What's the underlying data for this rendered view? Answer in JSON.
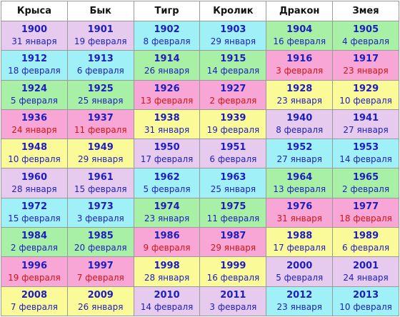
{
  "colors": {
    "pink": "#f7a6d6",
    "lavender": "#e6cbef",
    "cyan": "#9ff1f7",
    "green": "#a7f0a6",
    "yellow": "#fbfa99",
    "red_text": "#d41414",
    "blue_text": "#1d1dc0"
  },
  "columns": [
    "Крыса",
    "Бык",
    "Тигр",
    "Кролик",
    "Дракон",
    "Змея"
  ],
  "rows": [
    [
      [
        "1900",
        "31 января",
        "lavender"
      ],
      [
        "1901",
        "19 февраля",
        "lavender"
      ],
      [
        "1902",
        "8 февраля",
        "cyan"
      ],
      [
        "1903",
        "29 января",
        "cyan"
      ],
      [
        "1904",
        "16 февраля",
        "green"
      ],
      [
        "1905",
        "4 февраля",
        "green"
      ]
    ],
    [
      [
        "1912",
        "18 февраля",
        "cyan"
      ],
      [
        "1913",
        "6 февраля",
        "cyan"
      ],
      [
        "1914",
        "26 января",
        "green"
      ],
      [
        "1915",
        "14 февраля",
        "green"
      ],
      [
        "1916",
        "3 февраля",
        "pink"
      ],
      [
        "1917",
        "23 января",
        "pink"
      ]
    ],
    [
      [
        "1924",
        "5 февраля",
        "green"
      ],
      [
        "1925",
        "25 января",
        "green"
      ],
      [
        "1926",
        "13 февраля",
        "pink"
      ],
      [
        "1927",
        "2 февраля",
        "pink"
      ],
      [
        "1928",
        "23 января",
        "yellow"
      ],
      [
        "1929",
        "10 февраля",
        "yellow"
      ]
    ],
    [
      [
        "1936",
        "24 января",
        "pink"
      ],
      [
        "1937",
        "11 февраля",
        "pink"
      ],
      [
        "1938",
        "31 января",
        "yellow"
      ],
      [
        "1939",
        "19 февраля",
        "yellow"
      ],
      [
        "1940",
        "8 февраля",
        "lavender"
      ],
      [
        "1941",
        "27 января",
        "lavender"
      ]
    ],
    [
      [
        "1948",
        "10 февраля",
        "yellow"
      ],
      [
        "1949",
        "29 января",
        "yellow"
      ],
      [
        "1950",
        "17 февраля",
        "lavender"
      ],
      [
        "1951",
        "6 февраля",
        "lavender"
      ],
      [
        "1952",
        "27 января",
        "cyan"
      ],
      [
        "1953",
        "14 февраля",
        "cyan"
      ]
    ],
    [
      [
        "1960",
        "28 января",
        "lavender"
      ],
      [
        "1961",
        "15 февраля",
        "lavender"
      ],
      [
        "1962",
        "5 февраля",
        "cyan"
      ],
      [
        "1963",
        "25 января",
        "cyan"
      ],
      [
        "1964",
        "13 февраля",
        "green"
      ],
      [
        "1965",
        "2 февраля",
        "green"
      ]
    ],
    [
      [
        "1972",
        "15 февраля",
        "cyan"
      ],
      [
        "1973",
        "3 февраля",
        "cyan"
      ],
      [
        "1974",
        "23 января",
        "green"
      ],
      [
        "1975",
        "11 февраля",
        "green"
      ],
      [
        "1976",
        "31 января",
        "pink"
      ],
      [
        "1977",
        "18 февраля",
        "pink"
      ]
    ],
    [
      [
        "1984",
        "2 февраля",
        "green"
      ],
      [
        "1985",
        "20 февраля",
        "green"
      ],
      [
        "1986",
        "9 февраля",
        "pink"
      ],
      [
        "1987",
        "29 января",
        "pink"
      ],
      [
        "1988",
        "17 февраля",
        "yellow"
      ],
      [
        "1989",
        "6 февраля",
        "yellow"
      ]
    ],
    [
      [
        "1996",
        "19 февраля",
        "pink"
      ],
      [
        "1997",
        "7 февраля",
        "pink"
      ],
      [
        "1998",
        "28 января",
        "yellow"
      ],
      [
        "1999",
        "16 февраля",
        "yellow"
      ],
      [
        "2000",
        "5 февраля",
        "lavender"
      ],
      [
        "2001",
        "24 января",
        "lavender"
      ]
    ],
    [
      [
        "2008",
        "7 февраля",
        "yellow"
      ],
      [
        "2009",
        "26 января",
        "yellow"
      ],
      [
        "2010",
        "14 февраля",
        "lavender"
      ],
      [
        "2011",
        "3 февраля",
        "lavender"
      ],
      [
        "2012",
        "23 января",
        "cyan"
      ],
      [
        "2013",
        "10 февраля",
        "cyan"
      ]
    ]
  ]
}
